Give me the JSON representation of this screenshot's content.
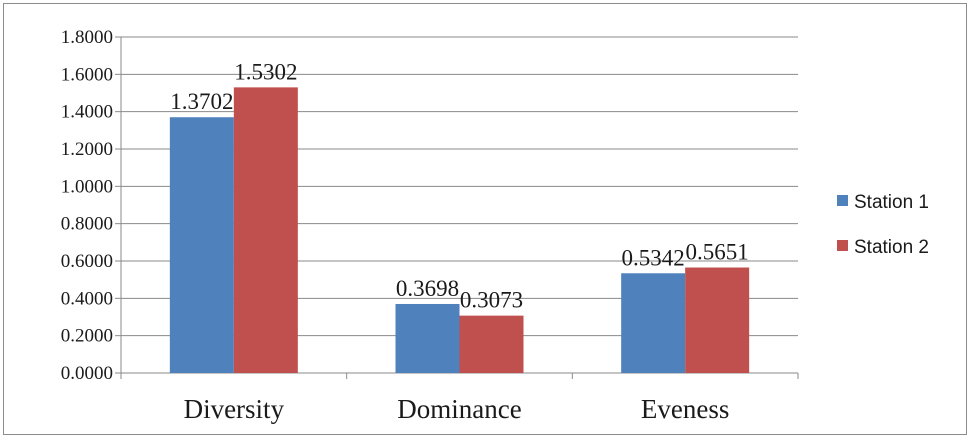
{
  "chart_data": {
    "type": "bar",
    "categories": [
      "Diversity",
      "Dominance",
      "Eveness"
    ],
    "series": [
      {
        "name": "Station 1",
        "values": [
          1.3702,
          0.3698,
          0.5342
        ],
        "color": "#4f81bd"
      },
      {
        "name": "Station 2",
        "values": [
          1.5302,
          0.3073,
          0.5651
        ],
        "color": "#c0504d"
      }
    ],
    "data_labels": [
      [
        "1.3702",
        "0.3698",
        "0.5342"
      ],
      [
        "1.5302",
        "0.3073",
        "0.5651"
      ]
    ],
    "y_ticks": [
      "0.0000",
      "0.2000",
      "0.4000",
      "0.6000",
      "0.8000",
      "1.0000",
      "1.2000",
      "1.4000",
      "1.6000",
      "1.8000"
    ],
    "ylim": [
      0,
      1.8
    ],
    "grid": true,
    "legend_position": "right"
  }
}
